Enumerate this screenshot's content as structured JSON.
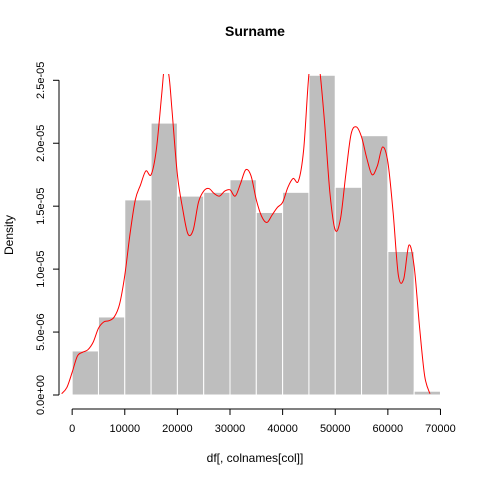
{
  "chart_data": {
    "type": "bar",
    "title": "Surname",
    "xlabel": "df[, colnames[col]]",
    "ylabel": "Density",
    "xlim": [
      -2500,
      72000
    ],
    "ylim": [
      0,
      2.55e-05
    ],
    "x_ticks": [
      0,
      10000,
      20000,
      30000,
      40000,
      50000,
      60000,
      70000
    ],
    "x_tick_labels": [
      "0",
      "10000",
      "20000",
      "30000",
      "40000",
      "50000",
      "60000",
      "70000"
    ],
    "y_ticks": [
      0,
      5e-06,
      1e-05,
      1.5e-05,
      2e-05,
      2.5e-05
    ],
    "y_tick_labels": [
      "0.0e+00",
      "5.0e-06",
      "1.0e-05",
      "1.5e-05",
      "2.0e-05",
      "2.5e-05"
    ],
    "grid": false,
    "colors": {
      "bars": "#bebebe",
      "bar_border": "#ffffff",
      "density_line": "#ff0000",
      "axis": "#000000"
    },
    "histogram": {
      "bin_edges": [
        0,
        5000,
        10000,
        15000,
        20000,
        25000,
        30000,
        35000,
        40000,
        45000,
        50000,
        55000,
        60000,
        65000,
        70000
      ],
      "values": [
        3.5e-06,
        6.2e-06,
        1.55e-05,
        2.16e-05,
        1.58e-05,
        1.61e-05,
        1.71e-05,
        1.45e-05,
        1.61e-05,
        2.54e-05,
        1.65e-05,
        2.06e-05,
        1.14e-05,
        3e-07
      ]
    },
    "density": {
      "x": [
        -2000,
        -1000,
        0,
        1000,
        2000,
        3000,
        4000,
        5000,
        6000,
        7000,
        8000,
        9000,
        10000,
        11000,
        12000,
        13000,
        14000,
        15000,
        16000,
        17000,
        17500,
        18000,
        18500,
        19000,
        20000,
        21000,
        22000,
        23000,
        24000,
        25000,
        26000,
        27000,
        28000,
        29000,
        30000,
        31000,
        32000,
        33000,
        34000,
        35000,
        36000,
        37000,
        38000,
        39000,
        40000,
        41000,
        42000,
        43000,
        44000,
        45000,
        46000,
        47000,
        48000,
        49000,
        50000,
        51000,
        52000,
        53000,
        54000,
        55000,
        56000,
        57000,
        58000,
        59000,
        60000,
        61000,
        62000,
        63000,
        64000,
        65000,
        66000,
        67000,
        68000
      ],
      "y": [
        1e-07,
        6e-07,
        1.8e-06,
        3.1e-06,
        3.4e-06,
        3.6e-06,
        4.2e-06,
        5.3e-06,
        5.8e-06,
        5.9e-06,
        6.2e-06,
        7.2e-06,
        9.5e-06,
        1.28e-05,
        1.55e-05,
        1.67e-05,
        1.78e-05,
        1.75e-05,
        1.95e-05,
        2.38e-05,
        2.6e-05,
        2.62e-05,
        2.5e-05,
        2.25e-05,
        1.75e-05,
        1.48e-05,
        1.28e-05,
        1.31e-05,
        1.53e-05,
        1.62e-05,
        1.64e-05,
        1.6e-05,
        1.58e-05,
        1.62e-05,
        1.63e-05,
        1.58e-05,
        1.68e-05,
        1.79e-05,
        1.74e-05,
        1.55e-05,
        1.42e-05,
        1.37e-05,
        1.43e-05,
        1.49e-05,
        1.53e-05,
        1.65e-05,
        1.72e-05,
        1.7e-05,
        1.95e-05,
        2.55e-05,
        2.8e-05,
        2.6e-05,
        2.15e-05,
        1.6e-05,
        1.31e-05,
        1.4e-05,
        1.75e-05,
        2.07e-05,
        2.13e-05,
        2.05e-05,
        1.88e-05,
        1.75e-05,
        1.82e-05,
        1.97e-05,
        1.85e-05,
        1.45e-05,
        9.5e-06,
        9.2e-06,
        1.19e-05,
        1.02e-05,
        5.5e-06,
        1.5e-06,
        1e-07
      ]
    }
  }
}
